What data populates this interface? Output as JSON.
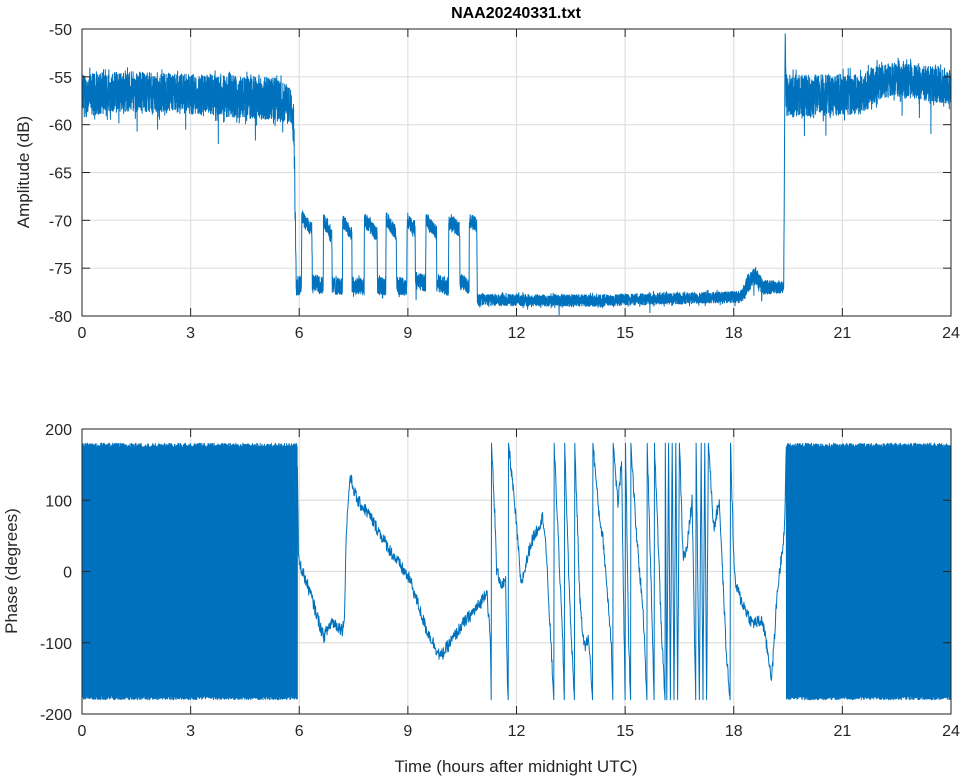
{
  "chart_data": [
    {
      "type": "line",
      "title": "NAA20240331.txt",
      "xlabel": "",
      "ylabel": "Amplitude (dB)",
      "xlim": [
        0,
        24
      ],
      "ylim": [
        -80,
        -50
      ],
      "xticks": [
        "0",
        "3",
        "6",
        "9",
        "12",
        "15",
        "18",
        "21",
        "24"
      ],
      "yticks": [
        "-50",
        "-55",
        "-60",
        "-65",
        "-70",
        "-75",
        "-80"
      ],
      "grid": true,
      "color": "#0072BD",
      "series_note": "noisy signal; points are [hours, center dB, noise half-width dB]",
      "points": [
        [
          0,
          -57,
          3
        ],
        [
          1,
          -56.5,
          2.8
        ],
        [
          3,
          -56.8,
          2.8
        ],
        [
          5.3,
          -57.3,
          3
        ],
        [
          5.75,
          -58,
          2.6
        ],
        [
          5.85,
          -60,
          3
        ],
        [
          5.92,
          -77,
          1.2
        ],
        [
          6.06,
          -76.8,
          1.2
        ],
        [
          6.07,
          -69.8,
          1
        ],
        [
          6.35,
          -71,
          1
        ],
        [
          6.36,
          -76.5,
          1.2
        ],
        [
          6.66,
          -76.8,
          1.2
        ],
        [
          6.67,
          -70,
          1
        ],
        [
          6.9,
          -71.5,
          1
        ],
        [
          6.91,
          -76.8,
          1.2
        ],
        [
          7.19,
          -77,
          1.2
        ],
        [
          7.2,
          -70,
          1
        ],
        [
          7.45,
          -71.5,
          1
        ],
        [
          7.46,
          -76.8,
          1.2
        ],
        [
          7.79,
          -77,
          1.2
        ],
        [
          7.8,
          -70,
          1
        ],
        [
          8.15,
          -71.5,
          1
        ],
        [
          8.16,
          -76.8,
          1.2
        ],
        [
          8.39,
          -77,
          1.2
        ],
        [
          8.4,
          -69.8,
          1
        ],
        [
          8.68,
          -71.5,
          1
        ],
        [
          8.69,
          -76.8,
          1.2
        ],
        [
          8.97,
          -77,
          1.2
        ],
        [
          8.98,
          -70,
          1
        ],
        [
          9.2,
          -71,
          1
        ],
        [
          9.21,
          -76.3,
          1.2
        ],
        [
          9.49,
          -76.5,
          1.2
        ],
        [
          9.5,
          -70,
          1
        ],
        [
          9.79,
          -71.3,
          1
        ],
        [
          9.8,
          -76.5,
          1.2
        ],
        [
          10.12,
          -77,
          1.2
        ],
        [
          10.13,
          -70,
          1
        ],
        [
          10.43,
          -71,
          1
        ],
        [
          10.44,
          -76.5,
          1.2
        ],
        [
          10.69,
          -76.8,
          1.2
        ],
        [
          10.7,
          -70,
          1
        ],
        [
          10.9,
          -70.5,
          1
        ],
        [
          10.92,
          -78.3,
          0.8
        ],
        [
          14,
          -78.4,
          0.8
        ],
        [
          16,
          -78.2,
          0.8
        ],
        [
          18.2,
          -78,
          0.8
        ],
        [
          18.4,
          -76.5,
          1.3
        ],
        [
          18.6,
          -75.8,
          1.2
        ],
        [
          18.8,
          -77,
          1
        ],
        [
          19.38,
          -77,
          0.8
        ],
        [
          19.42,
          -50.5,
          0.2
        ],
        [
          19.45,
          -57,
          3
        ],
        [
          21.5,
          -56.8,
          2.8
        ],
        [
          22,
          -55.5,
          2.5
        ],
        [
          22.5,
          -55.3,
          2.3
        ],
        [
          24,
          -56,
          2.5
        ]
      ]
    },
    {
      "type": "line",
      "title": "",
      "xlabel": "Time (hours after midnight UTC)",
      "ylabel": "Phase (degrees)",
      "xlim": [
        0,
        24
      ],
      "ylim": [
        -200,
        200
      ],
      "xticks": [
        "0",
        "3",
        "6",
        "9",
        "12",
        "15",
        "18",
        "21",
        "24"
      ],
      "yticks": [
        "200",
        "100",
        "0",
        "-100",
        "-200"
      ],
      "grid": true,
      "color": "#0072BD",
      "dense_ranges": [
        [
          0,
          5.95
        ],
        [
          19.45,
          24
        ]
      ],
      "dense_range_values": [
        -180,
        180
      ],
      "points": [
        [
          5.95,
          150
        ],
        [
          5.98,
          16
        ],
        [
          6.3,
          -30
        ],
        [
          6.67,
          -92
        ],
        [
          6.9,
          -70
        ],
        [
          7.2,
          -82
        ],
        [
          7.25,
          -60
        ],
        [
          7.3,
          58
        ],
        [
          7.4,
          133
        ],
        [
          7.6,
          100
        ],
        [
          7.9,
          82
        ],
        [
          8.5,
          30
        ],
        [
          9.06,
          -12
        ],
        [
          9.5,
          -80
        ],
        [
          9.9,
          -120
        ],
        [
          10.5,
          -75
        ],
        [
          11.0,
          -45
        ],
        [
          11.18,
          -25
        ],
        [
          11.28,
          -100
        ],
        [
          11.3,
          -180
        ],
        [
          11.31,
          180
        ],
        [
          11.4,
          80
        ],
        [
          11.45,
          2
        ],
        [
          11.6,
          -20
        ],
        [
          11.7,
          -16
        ],
        [
          11.75,
          -160
        ],
        [
          11.77,
          -180
        ],
        [
          11.78,
          180
        ],
        [
          11.9,
          120
        ],
        [
          12.05,
          34
        ],
        [
          12.12,
          -20
        ],
        [
          12.4,
          40
        ],
        [
          12.73,
          77
        ],
        [
          12.8,
          45
        ],
        [
          12.95,
          -100
        ],
        [
          13.03,
          -180
        ],
        [
          13.04,
          180
        ],
        [
          13.15,
          50
        ],
        [
          13.28,
          -103
        ],
        [
          13.32,
          -180
        ],
        [
          13.33,
          180
        ],
        [
          13.47,
          -46
        ],
        [
          13.6,
          -180
        ],
        [
          13.61,
          180
        ],
        [
          13.75,
          -40
        ],
        [
          13.87,
          -106
        ],
        [
          14.0,
          -95
        ],
        [
          14.1,
          -180
        ],
        [
          14.11,
          180
        ],
        [
          14.27,
          85
        ],
        [
          14.4,
          40
        ],
        [
          14.62,
          -100
        ],
        [
          14.66,
          -180
        ],
        [
          14.67,
          180
        ],
        [
          14.8,
          95
        ],
        [
          14.9,
          150
        ],
        [
          15.0,
          -180
        ],
        [
          15.01,
          180
        ],
        [
          15.1,
          -100
        ],
        [
          15.15,
          -180
        ],
        [
          15.16,
          180
        ],
        [
          15.3,
          60
        ],
        [
          15.5,
          -60
        ],
        [
          15.6,
          -180
        ],
        [
          15.61,
          180
        ],
        [
          15.72,
          -20
        ],
        [
          15.8,
          -180
        ],
        [
          15.81,
          180
        ],
        [
          15.9,
          60
        ],
        [
          16.0,
          -80
        ],
        [
          16.1,
          -180
        ],
        [
          16.11,
          180
        ],
        [
          16.15,
          -180
        ],
        [
          16.2,
          180
        ],
        [
          16.25,
          -180
        ],
        [
          16.3,
          180
        ],
        [
          16.35,
          -180
        ],
        [
          16.4,
          180
        ],
        [
          16.45,
          -180
        ],
        [
          16.5,
          180
        ],
        [
          16.6,
          20
        ],
        [
          16.7,
          30
        ],
        [
          16.85,
          100
        ],
        [
          16.95,
          -180
        ],
        [
          16.96,
          180
        ],
        [
          17.05,
          -180
        ],
        [
          17.1,
          180
        ],
        [
          17.15,
          -180
        ],
        [
          17.2,
          180
        ],
        [
          17.25,
          -180
        ],
        [
          17.3,
          180
        ],
        [
          17.45,
          60
        ],
        [
          17.6,
          100
        ],
        [
          17.8,
          -120
        ],
        [
          17.9,
          -180
        ],
        [
          17.91,
          180
        ],
        [
          18.0,
          20
        ],
        [
          18.04,
          -16
        ],
        [
          18.2,
          -40
        ],
        [
          18.5,
          -72
        ],
        [
          18.8,
          -70
        ],
        [
          19.05,
          -150
        ],
        [
          19.2,
          -30
        ],
        [
          19.27,
          0
        ],
        [
          19.4,
          60
        ],
        [
          19.45,
          170
        ]
      ]
    }
  ]
}
